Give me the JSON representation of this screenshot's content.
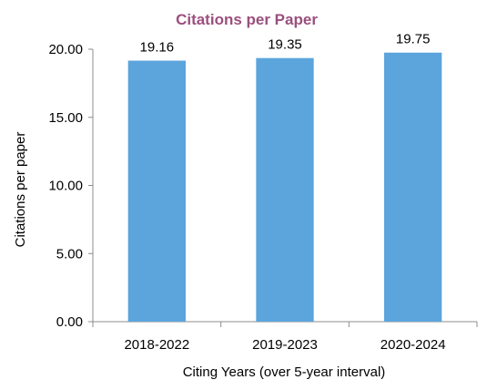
{
  "colors": {
    "title": "#9B4F7D",
    "bar": "#5BA4DC",
    "axis": "#8C8C8C",
    "text": "#000000"
  },
  "chart_data": {
    "type": "bar",
    "title": "Citations per Paper",
    "xlabel": "Citing Years (over 5-year interval)",
    "ylabel": "Citations per paper",
    "categories": [
      "2018-2022",
      "2019-2023",
      "2020-2024"
    ],
    "values": [
      19.16,
      19.35,
      19.75
    ],
    "value_labels": [
      "19.16",
      "19.35",
      "19.75"
    ],
    "ylim": [
      0,
      20
    ],
    "yticks": [
      0,
      5,
      10,
      15,
      20
    ],
    "ytick_labels": [
      "0.00",
      "5.00",
      "10.00",
      "15.00",
      "20.00"
    ],
    "grid": false,
    "legend": "none"
  }
}
